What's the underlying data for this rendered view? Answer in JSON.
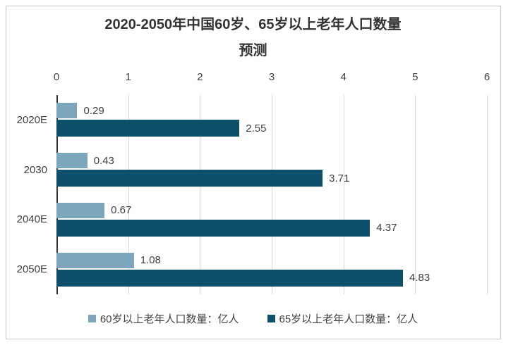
{
  "chart": {
    "title_line1": "2020-2050年中国60岁、65岁以上老年人口数量",
    "title_line2": "预测"
  },
  "chart_data": {
    "type": "bar",
    "orientation": "horizontal",
    "title": "2020-2050年中国60岁、65岁以上老年人口数量预测",
    "categories": [
      "2020E",
      "2030",
      "2040E",
      "2050E"
    ],
    "series": [
      {
        "name": "60岁以上老年人口数量：亿人",
        "color": "#7ca6bc",
        "values": [
          0.29,
          0.43,
          0.67,
          1.08
        ]
      },
      {
        "name": "65岁以上老年人口数量：亿人",
        "color": "#0e506b",
        "values": [
          2.55,
          3.71,
          4.37,
          4.83
        ]
      }
    ],
    "xlim": [
      0,
      6
    ],
    "x_ticks": [
      0,
      1,
      2,
      3,
      4,
      5,
      6
    ],
    "grid": true,
    "legend_position": "bottom",
    "value_label_decimals": 2
  },
  "colors": {
    "series_60plus": "#7ca6bc",
    "series_65plus": "#0e506b",
    "gridline": "#d9d9d9",
    "axis_line": "#333333",
    "text": "#404040",
    "title_text": "#333333",
    "frame_border": "#c6c6c6",
    "background": "#ffffff"
  }
}
